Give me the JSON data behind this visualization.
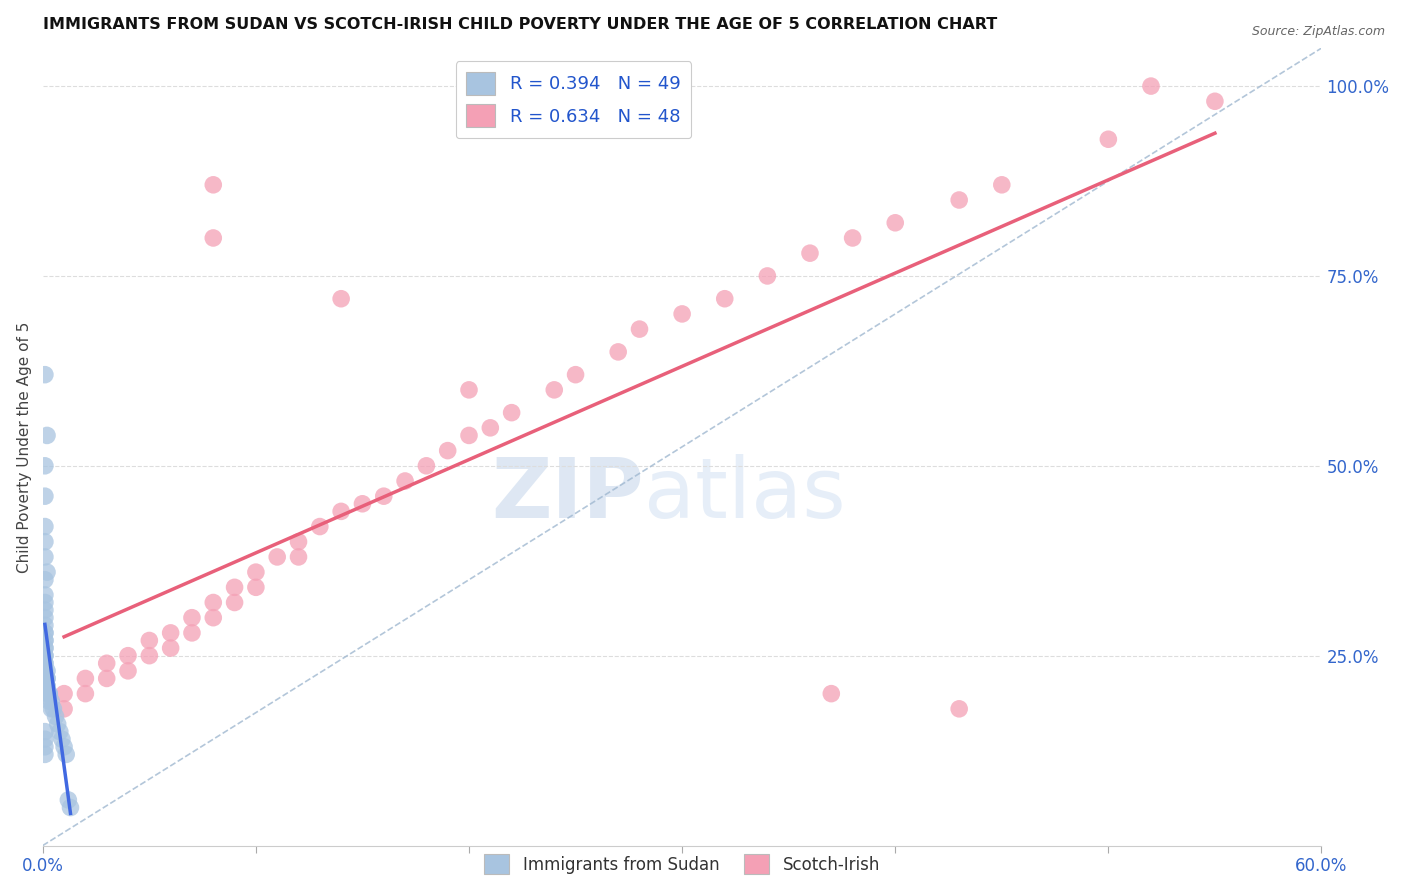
{
  "title": "IMMIGRANTS FROM SUDAN VS SCOTCH-IRISH CHILD POVERTY UNDER THE AGE OF 5 CORRELATION CHART",
  "source": "Source: ZipAtlas.com",
  "ylabel": "Child Poverty Under the Age of 5",
  "xlim": [
    0.0,
    0.6
  ],
  "ylim": [
    0.0,
    1.05
  ],
  "xticks": [
    0.0,
    0.1,
    0.2,
    0.3,
    0.4,
    0.5,
    0.6
  ],
  "xticklabels": [
    "0.0%",
    "",
    "",
    "",
    "",
    "",
    "60.0%"
  ],
  "yticks_right": [
    0.0,
    0.25,
    0.5,
    0.75,
    1.0
  ],
  "yticklabels_right": [
    "",
    "25.0%",
    "50.0%",
    "75.0%",
    "100.0%"
  ],
  "background_color": "#ffffff",
  "grid_color": "#dddddd",
  "watermark_zip": "ZIP",
  "watermark_atlas": "atlas",
  "sudan_R": 0.394,
  "sudan_N": 49,
  "scotch_R": 0.634,
  "scotch_N": 48,
  "sudan_color": "#a8c4e0",
  "scotch_color": "#f4a0b5",
  "sudan_line_color": "#4169e1",
  "scotch_line_color": "#e8607a",
  "dashed_line_color": "#a0b8d0",
  "sudan_x": [
    0.001,
    0.002,
    0.001,
    0.001,
    0.001,
    0.001,
    0.001,
    0.002,
    0.001,
    0.001,
    0.001,
    0.001,
    0.001,
    0.001,
    0.001,
    0.001,
    0.001,
    0.001,
    0.001,
    0.001,
    0.001,
    0.001,
    0.001,
    0.001,
    0.001,
    0.002,
    0.002,
    0.002,
    0.002,
    0.002,
    0.002,
    0.003,
    0.003,
    0.003,
    0.004,
    0.004,
    0.005,
    0.006,
    0.007,
    0.008,
    0.009,
    0.01,
    0.011,
    0.012,
    0.013,
    0.001,
    0.001,
    0.001,
    0.001
  ],
  "sudan_y": [
    0.62,
    0.54,
    0.5,
    0.46,
    0.42,
    0.4,
    0.38,
    0.36,
    0.35,
    0.33,
    0.32,
    0.31,
    0.3,
    0.29,
    0.28,
    0.28,
    0.27,
    0.27,
    0.26,
    0.26,
    0.25,
    0.25,
    0.24,
    0.24,
    0.23,
    0.23,
    0.22,
    0.22,
    0.21,
    0.21,
    0.2,
    0.2,
    0.2,
    0.19,
    0.19,
    0.18,
    0.18,
    0.17,
    0.16,
    0.15,
    0.14,
    0.13,
    0.12,
    0.06,
    0.05,
    0.15,
    0.14,
    0.13,
    0.12
  ],
  "scotch_x": [
    0.01,
    0.01,
    0.02,
    0.02,
    0.03,
    0.03,
    0.04,
    0.04,
    0.05,
    0.05,
    0.06,
    0.06,
    0.07,
    0.07,
    0.08,
    0.08,
    0.09,
    0.09,
    0.1,
    0.1,
    0.11,
    0.12,
    0.12,
    0.13,
    0.14,
    0.15,
    0.16,
    0.17,
    0.18,
    0.19,
    0.2,
    0.21,
    0.22,
    0.24,
    0.25,
    0.27,
    0.28,
    0.3,
    0.32,
    0.34,
    0.36,
    0.38,
    0.4,
    0.43,
    0.45,
    0.5,
    0.52,
    0.55
  ],
  "scotch_y": [
    0.2,
    0.18,
    0.22,
    0.2,
    0.24,
    0.22,
    0.25,
    0.23,
    0.27,
    0.25,
    0.28,
    0.26,
    0.3,
    0.28,
    0.32,
    0.3,
    0.34,
    0.32,
    0.36,
    0.34,
    0.38,
    0.4,
    0.38,
    0.42,
    0.44,
    0.45,
    0.46,
    0.48,
    0.5,
    0.52,
    0.54,
    0.55,
    0.57,
    0.6,
    0.62,
    0.65,
    0.68,
    0.7,
    0.72,
    0.75,
    0.78,
    0.8,
    0.82,
    0.85,
    0.87,
    0.93,
    1.0,
    0.98
  ],
  "scotch_outliers_x": [
    0.08,
    0.08,
    0.14,
    0.2,
    0.37,
    0.43
  ],
  "scotch_outliers_y": [
    0.87,
    0.8,
    0.72,
    0.6,
    0.2,
    0.18
  ]
}
